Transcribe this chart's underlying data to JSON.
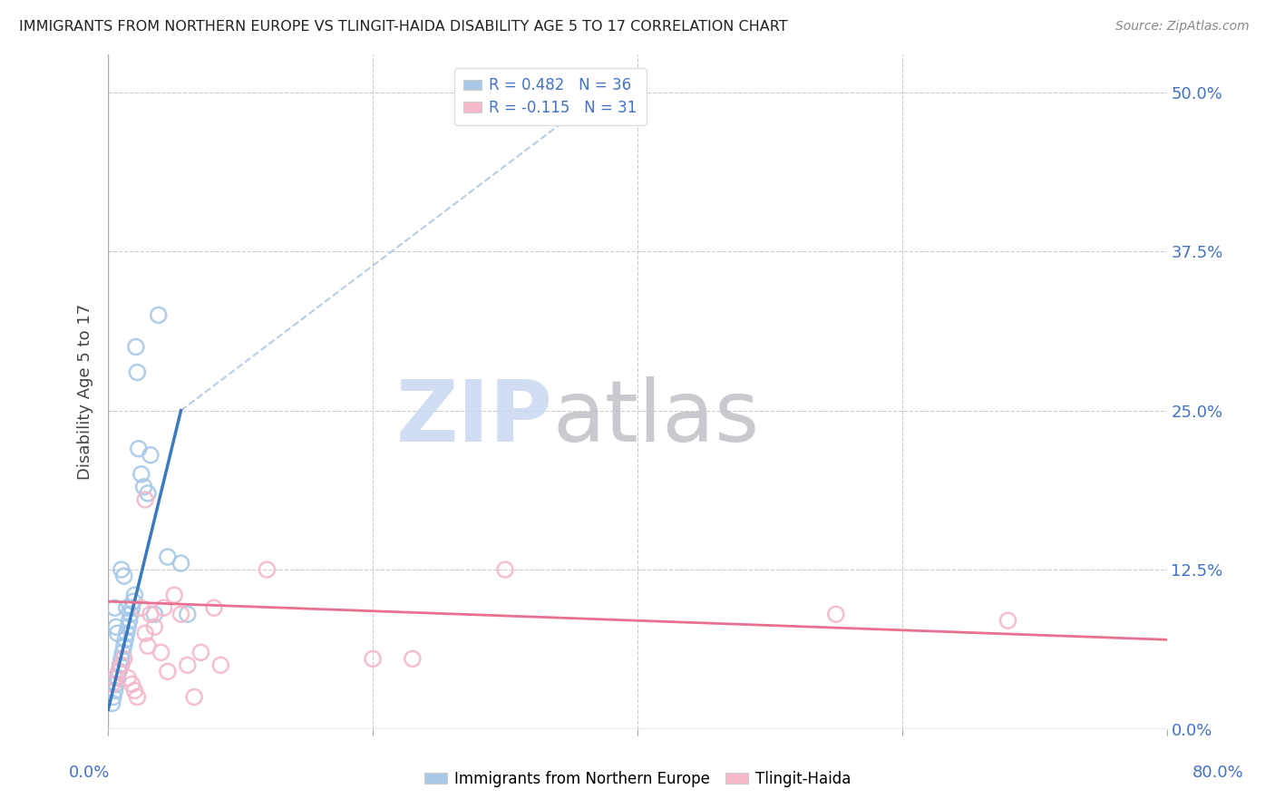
{
  "title": "IMMIGRANTS FROM NORTHERN EUROPE VS TLINGIT-HAIDA DISABILITY AGE 5 TO 17 CORRELATION CHART",
  "source": "Source: ZipAtlas.com",
  "ylabel": "Disability Age 5 to 17",
  "yticks_labels": [
    "0.0%",
    "12.5%",
    "25.0%",
    "37.5%",
    "50.0%"
  ],
  "ytick_vals": [
    0.0,
    12.5,
    25.0,
    37.5,
    50.0
  ],
  "xlim": [
    0.0,
    80.0
  ],
  "ylim": [
    0.0,
    53.0
  ],
  "blue_color": "#a8c8e8",
  "pink_color": "#f4b8c8",
  "blue_line_color": "#3a7bbf",
  "pink_line_color": "#e87090",
  "dashed_line_color": "#b0c8e0",
  "axis_label_color": "#4472c4",
  "legend_R1": "R = 0.482",
  "legend_N1": "N = 36",
  "legend_R2": "R = -0.115",
  "legend_N2": "N = 31",
  "blue_scatter_x": [
    0.3,
    0.4,
    0.5,
    0.6,
    0.7,
    0.8,
    0.9,
    1.0,
    1.1,
    1.2,
    1.3,
    1.4,
    1.5,
    1.6,
    1.7,
    1.8,
    1.9,
    2.0,
    2.1,
    2.2,
    2.3,
    2.5,
    2.7,
    3.0,
    3.2,
    3.5,
    4.5,
    5.5,
    6.0,
    0.5,
    0.6,
    0.7,
    1.0,
    1.2,
    1.4,
    3.8
  ],
  "blue_scatter_y": [
    2.0,
    2.5,
    3.0,
    3.5,
    4.0,
    4.5,
    5.0,
    5.5,
    6.0,
    6.5,
    7.0,
    7.5,
    8.0,
    8.5,
    9.0,
    9.5,
    10.0,
    10.5,
    30.0,
    28.0,
    22.0,
    20.0,
    19.0,
    18.5,
    21.5,
    9.0,
    13.5,
    13.0,
    9.0,
    9.5,
    8.0,
    7.5,
    12.5,
    12.0,
    9.5,
    32.5
  ],
  "pink_scatter_x": [
    0.3,
    0.5,
    0.8,
    1.0,
    1.2,
    1.5,
    1.8,
    2.0,
    2.2,
    2.5,
    2.8,
    3.0,
    3.2,
    3.5,
    4.0,
    4.5,
    5.0,
    5.5,
    6.0,
    7.0,
    8.0,
    8.5,
    12.0,
    20.0,
    23.0,
    30.0,
    55.0,
    68.0,
    2.8,
    4.2,
    6.5
  ],
  "pink_scatter_y": [
    3.5,
    4.0,
    4.5,
    5.0,
    5.5,
    4.0,
    3.5,
    3.0,
    2.5,
    9.5,
    7.5,
    6.5,
    9.0,
    8.0,
    6.0,
    4.5,
    10.5,
    9.0,
    5.0,
    6.0,
    9.5,
    5.0,
    12.5,
    5.5,
    5.5,
    12.5,
    9.0,
    8.5,
    18.0,
    9.5,
    2.5
  ],
  "blue_trendline_x": [
    0.0,
    5.5
  ],
  "blue_trendline_y": [
    1.5,
    25.0
  ],
  "pink_trendline_x": [
    0.0,
    80.0
  ],
  "pink_trendline_y": [
    10.0,
    7.0
  ],
  "dashed_line_x": [
    5.5,
    38.0
  ],
  "dashed_line_y": [
    25.0,
    50.5
  ],
  "legend_label_blue": "Immigrants from Northern Europe",
  "legend_label_pink": "Tlingit-Haida",
  "xtick_positions": [
    0,
    20,
    40,
    60,
    80
  ],
  "watermark_zip_color": "#c8d8f0",
  "watermark_atlas_color": "#c0c0c8"
}
